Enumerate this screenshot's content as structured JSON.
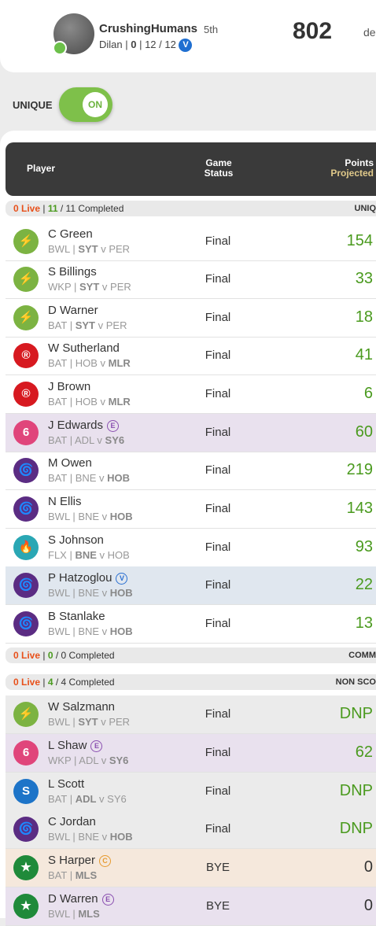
{
  "profile": {
    "team_name": "CrushingHumans",
    "rank": "5th",
    "coach": "Dilan",
    "stat_a": "0",
    "stat_b": "12",
    "stat_c": "12",
    "badge": "V",
    "score": "802",
    "score_trail": "de"
  },
  "unique": {
    "label": "UNIQUE",
    "toggle": "ON"
  },
  "table_header": {
    "player": "Player",
    "game": "Game",
    "status": "Status",
    "points": "Points",
    "projected": "Projected"
  },
  "groups": [
    {
      "live": "0 Live",
      "sep": "|",
      "completed_count": "11",
      "total": "/ 11 Completed",
      "label": "UNIQ"
    },
    {
      "live": "0 Live",
      "sep": "|",
      "completed_count": "0",
      "total": "/ 0 Completed",
      "label": "COMM"
    },
    {
      "live": "0 Live",
      "sep": "|",
      "completed_count": "4",
      "total": "/ 4 Completed",
      "label": "NON SCO"
    }
  ],
  "players": [
    {
      "name": "C Green",
      "pos": "BWL",
      "team": "SYT",
      "vs": "v",
      "opp": "PER",
      "bold": "team",
      "status": "Final",
      "points": "154",
      "logo": "thunder-logo",
      "logo_color": "#7cb342",
      "bg": ""
    },
    {
      "name": "S Billings",
      "pos": "WKP",
      "team": "SYT",
      "vs": "v",
      "opp": "PER",
      "bold": "team",
      "status": "Final",
      "points": "33",
      "logo": "thunder-logo",
      "logo_color": "#7cb342",
      "bg": ""
    },
    {
      "name": "D Warner",
      "pos": "BAT",
      "team": "SYT",
      "vs": "v",
      "opp": "PER",
      "bold": "team",
      "status": "Final",
      "points": "18",
      "logo": "thunder-logo",
      "logo_color": "#7cb342",
      "bg": ""
    },
    {
      "name": "W Sutherland",
      "pos": "BAT",
      "team": "HOB",
      "vs": "v",
      "opp": "MLR",
      "bold": "opp",
      "status": "Final",
      "points": "41",
      "logo": "renegades-logo",
      "logo_color": "#d71920",
      "bg": ""
    },
    {
      "name": "J Brown",
      "pos": "BAT",
      "team": "HOB",
      "vs": "v",
      "opp": "MLR",
      "bold": "opp",
      "status": "Final",
      "points": "6",
      "logo": "renegades-logo",
      "logo_color": "#d71920",
      "bg": ""
    },
    {
      "name": "J Edwards",
      "tag": "E",
      "pos": "BAT",
      "team": "ADL",
      "vs": "v",
      "opp": "SY6",
      "bold": "opp",
      "status": "Final",
      "points": "60",
      "logo": "sixers-logo",
      "logo_color": "#e0457b",
      "bg": "purple"
    },
    {
      "name": "M Owen",
      "pos": "BAT",
      "team": "BNE",
      "vs": "v",
      "opp": "HOB",
      "bold": "opp",
      "status": "Final",
      "points": "219",
      "logo": "hurricanes-logo",
      "logo_color": "#5b2c83",
      "bg": ""
    },
    {
      "name": "N Ellis",
      "pos": "BWL",
      "team": "BNE",
      "vs": "v",
      "opp": "HOB",
      "bold": "opp",
      "status": "Final",
      "points": "143",
      "logo": "hurricanes-logo",
      "logo_color": "#5b2c83",
      "bg": ""
    },
    {
      "name": "S Johnson",
      "pos": "FLX",
      "team": "BNE",
      "vs": "v",
      "opp": "HOB",
      "bold": "team",
      "status": "Final",
      "points": "93",
      "logo": "heat-logo",
      "logo_color": "#2aa7b4",
      "bg": ""
    },
    {
      "name": "P Hatzoglou",
      "tag": "V",
      "pos": "BWL",
      "team": "BNE",
      "vs": "v",
      "opp": "HOB",
      "bold": "opp",
      "status": "Final",
      "points": "22",
      "logo": "hurricanes-logo",
      "logo_color": "#5b2c83",
      "bg": "blue"
    },
    {
      "name": "B Stanlake",
      "pos": "BWL",
      "team": "BNE",
      "vs": "v",
      "opp": "HOB",
      "bold": "opp",
      "status": "Final",
      "points": "13",
      "logo": "hurricanes-logo",
      "logo_color": "#5b2c83",
      "bg": ""
    },
    {
      "name": "W Salzmann",
      "pos": "BWL",
      "team": "SYT",
      "vs": "v",
      "opp": "PER",
      "bold": "team",
      "status": "Final",
      "points": "DNP",
      "logo": "thunder-logo",
      "logo_color": "#7cb342",
      "bg": "grey"
    },
    {
      "name": "L Shaw",
      "tag": "E",
      "pos": "WKP",
      "team": "ADL",
      "vs": "v",
      "opp": "SY6",
      "bold": "opp",
      "status": "Final",
      "points": "62",
      "logo": "sixers-logo",
      "logo_color": "#e0457b",
      "bg": "purple"
    },
    {
      "name": "L Scott",
      "pos": "BAT",
      "team": "ADL",
      "vs": "v",
      "opp": "SY6",
      "bold": "team",
      "status": "Final",
      "points": "DNP",
      "logo": "strikers-logo",
      "logo_color": "#1d74c8",
      "bg": "grey"
    },
    {
      "name": "C Jordan",
      "pos": "BWL",
      "team": "BNE",
      "vs": "v",
      "opp": "HOB",
      "bold": "opp",
      "status": "Final",
      "points": "DNP",
      "logo": "hurricanes-logo",
      "logo_color": "#5b2c83",
      "bg": "grey"
    },
    {
      "name": "S Harper",
      "tag": "C",
      "pos": "BAT",
      "team": "MLS",
      "vs": "",
      "opp": "",
      "bold": "team",
      "status": "BYE",
      "points": "0",
      "logo": "stars-logo",
      "logo_color": "#1f8a3a",
      "bg": "peach"
    },
    {
      "name": "D Warren",
      "tag": "E",
      "pos": "BWL",
      "team": "MLS",
      "vs": "",
      "opp": "",
      "bold": "team",
      "status": "BYE",
      "points": "0",
      "logo": "stars-logo",
      "logo_color": "#1f8a3a",
      "bg": "purple"
    }
  ],
  "colors": {
    "accent_green": "#7ec04a",
    "live_red": "#e8501a",
    "header_dark": "#3a3a3a"
  }
}
